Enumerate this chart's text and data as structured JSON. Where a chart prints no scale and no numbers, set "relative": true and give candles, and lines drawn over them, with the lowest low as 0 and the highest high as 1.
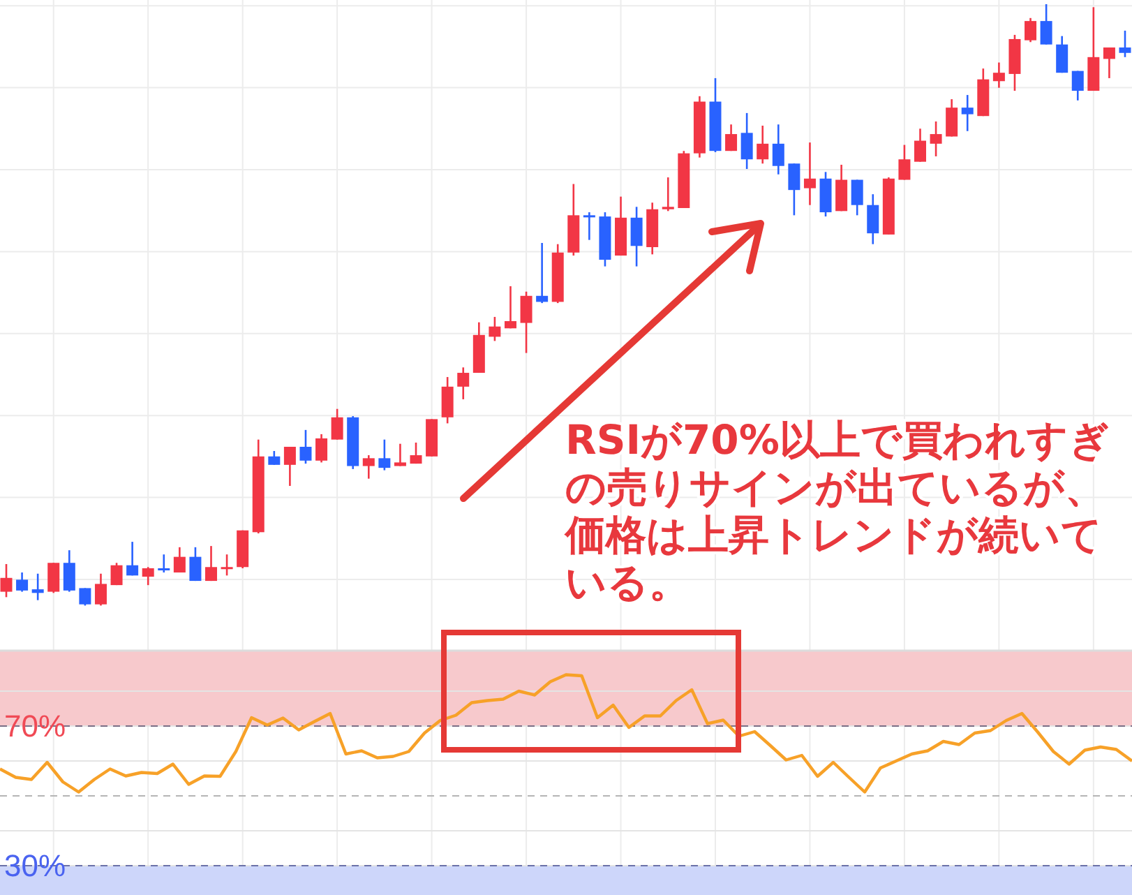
{
  "chart_data": [
    {
      "type": "candlestick",
      "relative": true,
      "grid": true,
      "categories": [
        null,
        null,
        null,
        null,
        null,
        null,
        null,
        null,
        null,
        null,
        null,
        null,
        null,
        null,
        null,
        null,
        null,
        null,
        null,
        null,
        null,
        null,
        null,
        null,
        null,
        null,
        null,
        null,
        null,
        null,
        null,
        null,
        null,
        null,
        null,
        null,
        null,
        null,
        null,
        null,
        null,
        null,
        null,
        null,
        null,
        null,
        null,
        null,
        null,
        null,
        null,
        null,
        null,
        null,
        null,
        null,
        null,
        null,
        null,
        null,
        null,
        null,
        null,
        null,
        null,
        null,
        null,
        null,
        null,
        null,
        null,
        null
      ],
      "ohlc": [
        [
          0.023,
          0.069,
          0.014,
          0.046
        ],
        [
          0.043,
          0.055,
          0.023,
          0.025
        ],
        [
          0.027,
          0.053,
          0.009,
          0.021
        ],
        [
          0.023,
          0.071,
          0.021,
          0.071
        ],
        [
          0.071,
          0.092,
          0.023,
          0.025
        ],
        [
          0.029,
          0.029,
          0,
          0.002
        ],
        [
          0.002,
          0.053,
          0,
          0.036
        ],
        [
          0.034,
          0.071,
          0.034,
          0.067
        ],
        [
          0.067,
          0.106,
          0.05,
          0.05
        ],
        [
          0.048,
          0.064,
          0.034,
          0.062
        ],
        [
          0.062,
          0.085,
          0.055,
          0.06
        ],
        [
          0.055,
          0.097,
          0.055,
          0.081
        ],
        [
          0.081,
          0.097,
          0.041,
          0.041
        ],
        [
          0.041,
          0.099,
          0.041,
          0.064
        ],
        [
          0.062,
          0.085,
          0.05,
          0.064
        ],
        [
          0.064,
          0.125,
          0.062,
          0.125
        ],
        [
          0.122,
          0.276,
          0.12,
          0.248
        ],
        [
          0.248,
          0.257,
          0.234,
          0.234
        ],
        [
          0.234,
          0.264,
          0.199,
          0.264
        ],
        [
          0.264,
          0.292,
          0.236,
          0.241
        ],
        [
          0.241,
          0.285,
          0.238,
          0.278
        ],
        [
          0.276,
          0.327,
          0.276,
          0.313
        ],
        [
          0.313,
          0.315,
          0.227,
          0.232
        ],
        [
          0.232,
          0.25,
          0.211,
          0.245
        ],
        [
          0.245,
          0.276,
          0.225,
          0.229
        ],
        [
          0.232,
          0.269,
          0.232,
          0.238
        ],
        [
          0.236,
          0.271,
          0.236,
          0.25
        ],
        [
          0.248,
          0.31,
          0.248,
          0.31
        ],
        [
          0.313,
          0.38,
          0.303,
          0.364
        ],
        [
          0.364,
          0.396,
          0.343,
          0.387
        ],
        [
          0.387,
          0.471,
          0.387,
          0.45
        ],
        [
          0.447,
          0.48,
          0.44,
          0.464
        ],
        [
          0.461,
          0.531,
          0.461,
          0.473
        ],
        [
          0.47,
          0.522,
          0.42,
          0.515
        ],
        [
          0.515,
          0.603,
          0.503,
          0.505
        ],
        [
          0.505,
          0.601,
          0.503,
          0.587
        ],
        [
          0.587,
          0.701,
          0.582,
          0.649
        ],
        [
          0.649,
          0.654,
          0.608,
          0.647
        ],
        [
          0.647,
          0.654,
          0.564,
          0.575
        ],
        [
          0.582,
          0.68,
          0.582,
          0.645
        ],
        [
          0.645,
          0.663,
          0.564,
          0.598
        ],
        [
          0.596,
          0.67,
          0.584,
          0.659
        ],
        [
          0.659,
          0.712,
          0.656,
          0.663
        ],
        [
          0.661,
          0.756,
          0.661,
          0.752
        ],
        [
          0.752,
          0.847,
          0.745,
          0.838
        ],
        [
          0.838,
          0.877,
          0.754,
          0.756
        ],
        [
          0.756,
          0.8,
          0.756,
          0.784
        ],
        [
          0.786,
          0.819,
          0.726,
          0.742
        ],
        [
          0.742,
          0.798,
          0.735,
          0.768
        ],
        [
          0.768,
          0.8,
          0.717,
          0.731
        ],
        [
          0.735,
          0.735,
          0.649,
          0.691
        ],
        [
          0.694,
          0.77,
          0.666,
          0.71
        ],
        [
          0.71,
          0.721,
          0.647,
          0.654
        ],
        [
          0.656,
          0.733,
          0.656,
          0.708
        ],
        [
          0.708,
          0.708,
          0.649,
          0.666
        ],
        [
          0.666,
          0.684,
          0.601,
          0.619
        ],
        [
          0.617,
          0.712,
          0.617,
          0.71
        ],
        [
          0.708,
          0.766,
          0.708,
          0.742
        ],
        [
          0.738,
          0.793,
          0.738,
          0.773
        ],
        [
          0.768,
          0.805,
          0.747,
          0.784
        ],
        [
          0.78,
          0.842,
          0.78,
          0.828
        ],
        [
          0.828,
          0.849,
          0.789,
          0.817
        ],
        [
          0.814,
          0.893,
          0.814,
          0.875
        ],
        [
          0.872,
          0.903,
          0.861,
          0.886
        ],
        [
          0.884,
          0.949,
          0.856,
          0.942
        ],
        [
          0.94,
          0.977,
          0.937,
          0.972
        ],
        [
          0.972,
          1,
          0.933,
          0.933
        ],
        [
          0.933,
          0.947,
          0.886,
          0.886
        ],
        [
          0.889,
          0.889,
          0.84,
          0.856
        ],
        [
          0.856,
          0.995,
          0.856,
          0.912
        ],
        [
          0.909,
          0.928,
          0.877,
          0.928
        ],
        [
          0.928,
          0.956,
          0.912,
          0.919
        ]
      ],
      "colors": [
        "#f23645",
        "#2962ff",
        "#2962ff",
        "#f23645",
        "#2962ff",
        "#2962ff",
        "#f23645",
        "#f23645",
        "#2962ff",
        "#f23645",
        "#2962ff",
        "#f23645",
        "#2962ff",
        "#f23645",
        "#f23645",
        "#f23645",
        "#f23645",
        "#2962ff",
        "#f23645",
        "#2962ff",
        "#f23645",
        "#f23645",
        "#2962ff",
        "#f23645",
        "#2962ff",
        "#f23645",
        "#f23645",
        "#f23645",
        "#f23645",
        "#f23645",
        "#f23645",
        "#f23645",
        "#f23645",
        "#f23645",
        "#2962ff",
        "#f23645",
        "#f23645",
        "#2962ff",
        "#2962ff",
        "#f23645",
        "#2962ff",
        "#f23645",
        "#f23645",
        "#f23645",
        "#f23645",
        "#2962ff",
        "#f23645",
        "#2962ff",
        "#f23645",
        "#2962ff",
        "#2962ff",
        "#f23645",
        "#2962ff",
        "#f23645",
        "#2962ff",
        "#2962ff",
        "#f23645",
        "#f23645",
        "#f23645",
        "#f23645",
        "#f23645",
        "#2962ff",
        "#f23645",
        "#f23645",
        "#f23645",
        "#f23645",
        "#2962ff",
        "#2962ff",
        "#2962ff",
        "#f23645",
        "#f23645",
        "#2962ff"
      ],
      "annotations": [
        "RSIが70%以上で買われすぎの売りサインが出ているが、価格は上昇トレンドが続いている。"
      ]
    },
    {
      "type": "line",
      "grid": "y",
      "tick_labels": "y",
      "marker": "none",
      "categories": [
        null,
        null,
        null,
        null,
        null,
        null,
        null,
        null,
        null,
        null,
        null,
        null,
        null,
        null,
        null,
        null,
        null,
        null,
        null,
        null,
        null,
        null,
        null,
        null,
        null,
        null,
        null,
        null,
        null,
        null,
        null,
        null,
        null,
        null,
        null,
        null,
        null,
        null,
        null,
        null,
        null,
        null,
        null,
        null,
        null,
        null,
        null,
        null,
        null,
        null,
        null,
        null,
        null,
        null,
        null,
        null,
        null,
        null,
        null,
        null,
        null,
        null,
        null,
        null,
        null,
        null,
        null,
        null,
        null,
        null,
        null,
        null,
        null
      ],
      "series": [
        {
          "color": "#f7a128",
          "values": [
            57.7,
            55.3,
            54.7,
            59.6,
            54.0,
            51.1,
            54.7,
            57.7,
            55.7,
            56.7,
            56.4,
            59.1,
            53.3,
            55.7,
            55.6,
            62.7,
            72.4,
            70.3,
            72.3,
            68.9,
            71.3,
            73.6,
            62.0,
            62.9,
            60.9,
            61.3,
            62.7,
            68.0,
            71.6,
            73.1,
            76.7,
            77.3,
            77.7,
            80.0,
            78.9,
            82.7,
            84.7,
            84.4,
            72.4,
            76.0,
            69.6,
            72.9,
            72.9,
            77.3,
            80.4,
            70.7,
            71.7,
            67.1,
            68.4,
            64.4,
            60.3,
            61.6,
            55.6,
            59.6,
            55.3,
            51.1,
            58.0,
            60.0,
            62.0,
            62.9,
            65.6,
            64.7,
            68.0,
            68.7,
            71.6,
            73.6,
            68.3,
            62.7,
            59.1,
            63.1,
            64.0,
            63.3,
            60.0
          ]
        }
      ],
      "ylim": [
        21.6,
        91.6
      ],
      "yticks": [
        {
          "value": 30,
          "label": "30%"
        },
        {
          "value": 40,
          "label": null
        },
        {
          "value": 60,
          "label": null
        },
        {
          "value": 70,
          "label": "70%"
        },
        {
          "value": 80,
          "label": null
        }
      ],
      "ref_lines": [
        {
          "axis": "y",
          "value": 70,
          "color": "#7a6f86",
          "line_style": "dashed"
        },
        {
          "axis": "y",
          "value": 50,
          "color": "#b5b5b5",
          "line_style": "dashed"
        },
        {
          "axis": "y",
          "value": 30,
          "color": "#6b72a8",
          "line_style": "dashed"
        }
      ],
      "bands": [
        {
          "axis": "y",
          "from": 70,
          "to": 91.6,
          "color": "#f7c9cc"
        },
        {
          "axis": "y",
          "from": 21.6,
          "to": 30,
          "color": "#cdd6fa"
        }
      ]
    }
  ]
}
